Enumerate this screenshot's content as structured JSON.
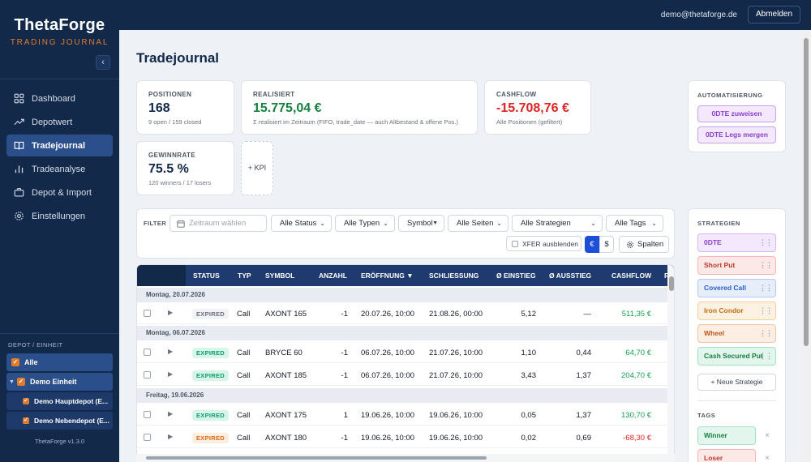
{
  "brand": {
    "title": "ThetaForge",
    "subtitle": "TRADING JOURNAL"
  },
  "sidebar": {
    "collapse_icon": "‹",
    "items": [
      {
        "label": "Dashboard",
        "icon": "grid-icon"
      },
      {
        "label": "Depotwert",
        "icon": "trend-up-icon"
      },
      {
        "label": "Tradejournal",
        "icon": "book-icon",
        "active": true
      },
      {
        "label": "Tradeanalyse",
        "icon": "bar-chart-icon"
      },
      {
        "label": "Depot & Import",
        "icon": "briefcase-icon"
      },
      {
        "label": "Einstellungen",
        "icon": "gear-icon"
      }
    ],
    "depot_title": "DEPOT / EINHEIT",
    "tree": [
      {
        "label": "Alle"
      },
      {
        "label": "Demo Einheit"
      },
      {
        "label": "Demo Hauptdepot (E..."
      },
      {
        "label": "Demo Nebendepot (E..."
      }
    ],
    "version": "ThetaForge v1.3.0"
  },
  "topbar": {
    "user": "demo@thetaforge.de",
    "logout_label": "Abmelden"
  },
  "page": {
    "title": "Tradejournal"
  },
  "kpis": {
    "positionen": {
      "label": "POSITIONEN",
      "value": "168",
      "sub": "9 open / 159 closed"
    },
    "realisiert": {
      "label": "REALISIERT",
      "value": "15.775,04 €",
      "sub": "Σ realisiert im Zeitraum (FIFO, trade_date — auch Altbestand & offene Pos.)",
      "color": "#15803d"
    },
    "cashflow": {
      "label": "CASHFLOW",
      "value": "-15.708,76 €",
      "sub": "Alle Positionen (gefiltert)",
      "color": "#dc2626"
    },
    "gewinnrate": {
      "label": "GEWINNRATE",
      "value": "75.5 %",
      "sub": "120 winners / 17 losers"
    },
    "add_label": "+ KPI"
  },
  "filter": {
    "label": "FILTER",
    "date_placeholder": "Zeitraum wählen",
    "selects": {
      "status": "Alle Status",
      "typen": "Alle Typen",
      "symbol": "Symbol",
      "seiten": "Alle Seiten",
      "strategien": "Alle Strategien",
      "tags": "Alle Tags"
    },
    "xfer_label": "XFER ausblenden",
    "currency": {
      "eur": "€",
      "usd": "$"
    },
    "columns_label": "Spalten"
  },
  "table": {
    "headers": {
      "status": "STATUS",
      "typ": "TYP",
      "symbol": "SYMBOL",
      "anzahl": "ANZAHL",
      "eroeffnung": "ERÖFFNUNG ▼",
      "schliessung": "SCHLIESSUNG",
      "einstieg": "Ø EINSTIEG",
      "ausstieg": "Ø AUSSTIEG",
      "cashflow": "CASHFLOW",
      "extra": "R"
    },
    "groups": [
      "Montag, 20.07.2026",
      "Montag, 06.07.2026",
      "Freitag, 19.06.2026"
    ],
    "rows": [
      {
        "status": "EXPIRED",
        "typ": "Call",
        "symbol": "AXONT 165",
        "anzahl": "-1",
        "open": "20.07.26, 10:00",
        "close": "21.08.26, 00:00",
        "entry": "5,12",
        "exit": "—",
        "cashflow": "511,35 €"
      },
      {
        "status": "EXPIRED",
        "typ": "Call",
        "symbol": "BRYCE 60",
        "anzahl": "-1",
        "open": "06.07.26, 10:00",
        "close": "21.07.26, 10:00",
        "entry": "1,10",
        "exit": "0,44",
        "cashflow": "64,70 €"
      },
      {
        "status": "EXPIRED",
        "typ": "Call",
        "symbol": "AXONT 185",
        "anzahl": "-1",
        "open": "06.07.26, 10:00",
        "close": "21.07.26, 10:00",
        "entry": "3,43",
        "exit": "1,37",
        "cashflow": "204,70 €"
      },
      {
        "status": "EXPIRED",
        "typ": "Call",
        "symbol": "AXONT 175",
        "anzahl": "1",
        "open": "19.06.26, 10:00",
        "close": "19.06.26, 10:00",
        "entry": "0,05",
        "exit": "1,37",
        "cashflow": "130,70 €"
      },
      {
        "status": "EXPIRED",
        "typ": "Call",
        "symbol": "AXONT 180",
        "anzahl": "-1",
        "open": "19.06.26, 10:00",
        "close": "19.06.26, 10:00",
        "entry": "0,02",
        "exit": "0,69",
        "cashflow": "-68,30 €"
      }
    ]
  },
  "automation": {
    "title": "AUTOMATISIERUNG",
    "btn1": "0DTE zuweisen",
    "btn2": "0DTE Legs mergen"
  },
  "strategies": {
    "title": "STRATEGIEN",
    "items": [
      {
        "label": "0DTE",
        "bg": "#f3e8fd",
        "border": "#d8b4f0",
        "color": "#8b3fc9"
      },
      {
        "label": "Short Put",
        "bg": "#fde8e8",
        "border": "#f3b4b4",
        "color": "#c0392b"
      },
      {
        "label": "Covered Call",
        "bg": "#e6eefc",
        "border": "#b4c8f0",
        "color": "#2c5cc5"
      },
      {
        "label": "Iron Condor",
        "bg": "#fdf1e1",
        "border": "#f0cfa4",
        "color": "#c2700f"
      },
      {
        "label": "Wheel",
        "bg": "#fdeee4",
        "border": "#f0c4a8",
        "color": "#b8551f"
      },
      {
        "label": "Cash Secured Put",
        "bg": "#e3f6ee",
        "border": "#a8e0c6",
        "color": "#15803d"
      }
    ],
    "add_label": "+ Neue Strategie"
  },
  "tags": {
    "title": "TAGS",
    "items": [
      {
        "label": "Winner",
        "bg": "#e3f6ee",
        "border": "#a8e0c6",
        "color": "#15803d"
      },
      {
        "label": "Loser",
        "bg": "#fde8e8",
        "border": "#f3b4b4",
        "color": "#c0392b"
      }
    ],
    "remove_icon": "×"
  }
}
